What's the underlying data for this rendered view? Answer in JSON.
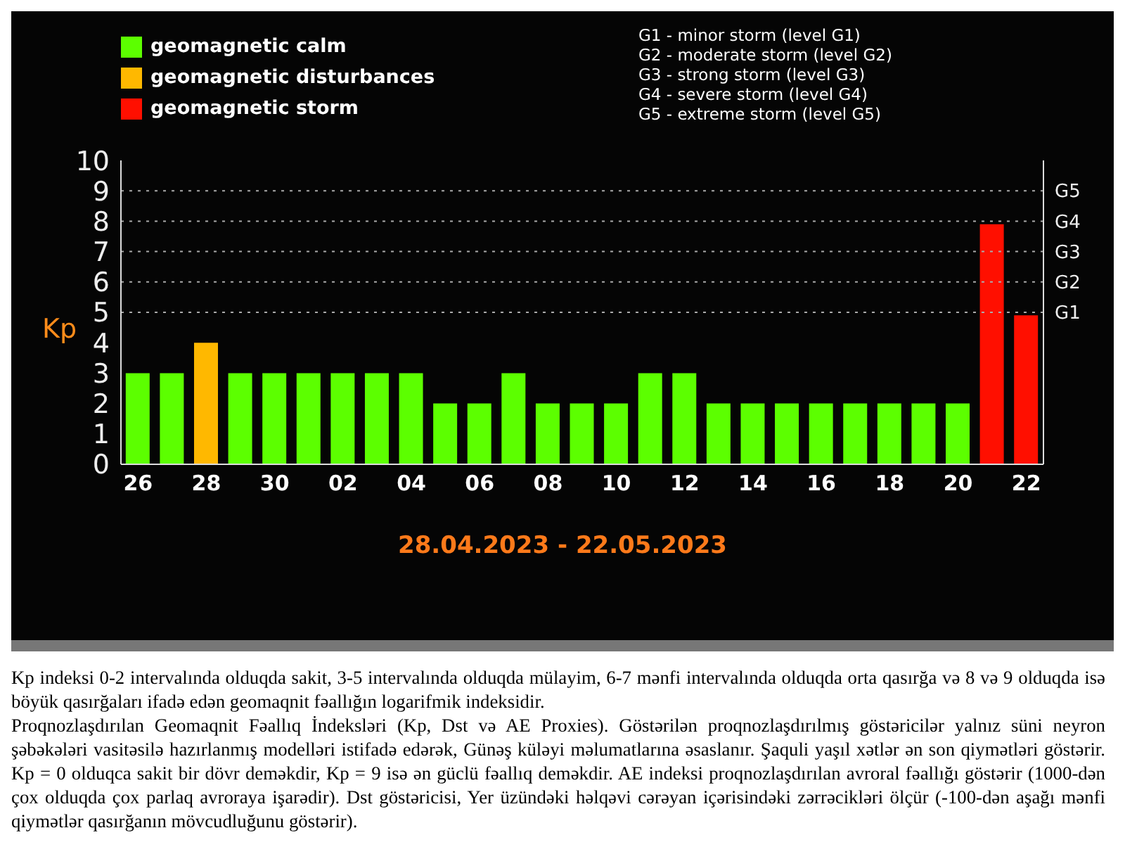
{
  "chart_data": {
    "type": "bar",
    "stacked": true,
    "xlabel": "28.04.2023 - 22.05.2023",
    "ylabel": "Kp",
    "categories": [
      "26",
      null,
      "28",
      null,
      "30",
      null,
      "02",
      null,
      "04",
      null,
      "06",
      null,
      "08",
      null,
      "10",
      null,
      "12",
      null,
      "14",
      null,
      "16",
      null,
      "18",
      null,
      "20",
      null,
      "22"
    ],
    "series": [
      {
        "name": "geomagnetic calm",
        "color": "#5cff00",
        "values": [
          3,
          3,
          null,
          3,
          3,
          3,
          3,
          3,
          3,
          2,
          2,
          3,
          2,
          2,
          2,
          3,
          3,
          2,
          2,
          2,
          2,
          2,
          2,
          2,
          2,
          null,
          null
        ]
      },
      {
        "name": "geomagnetic disturbances",
        "color": "#ffb800",
        "values": [
          null,
          null,
          4,
          null,
          null,
          null,
          null,
          null,
          null,
          null,
          null,
          null,
          null,
          null,
          null,
          null,
          null,
          null,
          null,
          null,
          null,
          null,
          null,
          null,
          null,
          null,
          null
        ]
      },
      {
        "name": "geomagnetic storm",
        "color": "#ff0f00",
        "values": [
          null,
          null,
          null,
          null,
          null,
          null,
          null,
          null,
          null,
          null,
          null,
          null,
          null,
          null,
          null,
          null,
          null,
          null,
          null,
          null,
          null,
          null,
          null,
          null,
          null,
          7.9,
          4.9
        ]
      }
    ],
    "ylim": [
      0,
      10
    ],
    "yticks": [
      0,
      1,
      2,
      3,
      4,
      5,
      6,
      7,
      8,
      9,
      10
    ],
    "ref_lines": [
      {
        "axis": "y",
        "value": 5,
        "label": "G1",
        "line_style": "dotted",
        "color": "#aaaaaa"
      },
      {
        "axis": "y",
        "value": 6,
        "label": "G2",
        "line_style": "dotted",
        "color": "#aaaaaa"
      },
      {
        "axis": "y",
        "value": 7,
        "label": "G3",
        "line_style": "dotted",
        "color": "#aaaaaa"
      },
      {
        "axis": "y",
        "value": 8,
        "label": "G4",
        "line_style": "dotted",
        "color": "#aaaaaa"
      },
      {
        "axis": "y",
        "value": 9,
        "label": "G5",
        "line_style": "dotted",
        "color": "#aaaaaa"
      }
    ],
    "legend": "top left",
    "annotations": [
      "G1 - minor storm (level G1)\nG2 - moderate storm (level G2)\nG3 - strong storm (level G3)\nG4 - severe storm (level G4)\nG5 - extreme storm (level G5)",
      "Kp indeksi 0-2 intervalında olduqda sakit, 3-5 intervalında olduqda mülayim, 6-7 mənfi intervalında olduqda orta qasırğa və 8 və 9 olduqda isə böyük qasırğaları ifadə edən geomaqnit fəallığın logarifmik indeksidir.",
      "Proqnozlaşdırılan Geomaqnit Fəallıq İndeksləri (Kp, Dst və AE Proxies). Göstərilən proqnozlaşdırılmış göstəricilər yalnız süni neyron şəbəkələri vasitəsilə hazırlanmış modelləri istifadə edərək, Günəş küləyi məlumatlarına əsaslanır. Şaquli yaşıl xətlər ən son qiymətləri göstərir. Kp = 0 olduqca sakit bir dövr deməkdir, Kp = 9 isə ən güclü fəallıq deməkdir. AE indeksi proqnozlaşdırılan avroral fəallığı göstərir (1000-dən çox olduqda çox parlaq avroraya işarədir). Dst göstəricisi, Yer üzündəki həlqəvi cərəyan içərisindəki zərrəcikləri ölçür (-100-dən aşağı mənfi qiymətlər qasırğanın mövcudluğunu göstərir)."
    ]
  }
}
